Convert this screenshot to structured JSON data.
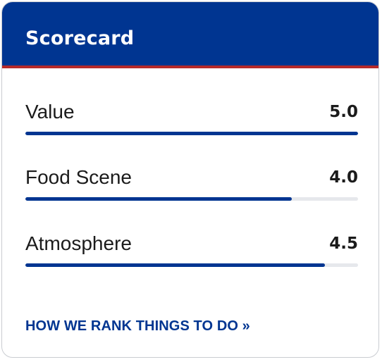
{
  "scorecard": {
    "title": "Scorecard",
    "max_score": 5,
    "items": [
      {
        "label": "Value",
        "score": "5.0",
        "fraction": 1.0
      },
      {
        "label": "Food Scene",
        "score": "4.0",
        "fraction": 0.8
      },
      {
        "label": "Atmosphere",
        "score": "4.5",
        "fraction": 0.9
      }
    ],
    "link_text": "HOW WE RANK THINGS TO DO »"
  },
  "colors": {
    "header_bg": "#003591",
    "accent_stripe": "#b52a2a",
    "bar_fill": "#003591",
    "bar_track": "#e6e8ec"
  }
}
